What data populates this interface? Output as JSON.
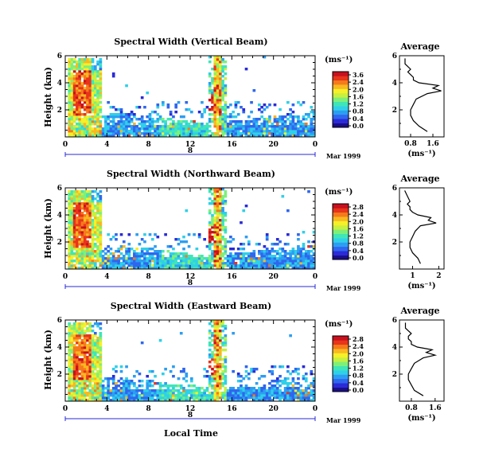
{
  "colorbar_colors": [
    "#1a0e8a",
    "#2a2ad8",
    "#2f66ee",
    "#2c9ef2",
    "#2fd0e8",
    "#3ee6b8",
    "#7ef07a",
    "#c8f040",
    "#f6f028",
    "#f9b820",
    "#f57a1c",
    "#e8341a",
    "#c8101e"
  ],
  "xaxis": {
    "ticks": [
      "0",
      "4",
      "8",
      "12",
      "16",
      "20",
      "0"
    ],
    "day_label": "8",
    "date_label": "Mar 1999",
    "label": "Local Time"
  },
  "yaxis_label": "Height (km)",
  "units_label": "(ms⁻¹)",
  "average_title": "Average",
  "charts": [
    {
      "title": "Spectral Width (Vertical Beam)",
      "colorbar_ticks": [
        "3.6",
        "2.4",
        "2.0",
        "1.6",
        "1.2",
        "0.8",
        "0.4",
        "0.0"
      ],
      "avg_xticks": [
        "0.8",
        "1.6"
      ],
      "avg_xrange": [
        0.4,
        2.0
      ]
    },
    {
      "title": "Spectral Width (Northward Beam)",
      "colorbar_ticks": [
        "2.8",
        "2.4",
        "2.0",
        "1.6",
        "1.2",
        "0.8",
        "0.4",
        "0.0"
      ],
      "avg_xticks": [
        "1",
        "2"
      ],
      "avg_xrange": [
        0.5,
        2.2
      ]
    },
    {
      "title": "Spectral Width (Eastward Beam)",
      "colorbar_ticks": [
        "2.8",
        "2.4",
        "2.0",
        "1.6",
        "1.2",
        "0.8",
        "0.4",
        "0.0"
      ],
      "avg_xticks": [
        "0.8",
        "1.6"
      ],
      "avg_xrange": [
        0.4,
        1.9
      ]
    }
  ],
  "chart_data": [
    {
      "type": "heatmap",
      "title": "Spectral Width (Vertical Beam)",
      "xlabel": "Local Time",
      "ylabel": "Height (km)",
      "x_range_hours": [
        0,
        24
      ],
      "y_range_km": [
        0,
        6
      ],
      "y_ticks": [
        2,
        4,
        6
      ],
      "colorbar_ticks": [
        0.0,
        0.4,
        0.8,
        1.2,
        1.6,
        2.0,
        2.4,
        3.6
      ],
      "average_profile": {
        "xlabel": "(ms⁻¹)",
        "height_km": [
          0.4,
          0.8,
          1.2,
          1.6,
          2.0,
          2.4,
          2.8,
          3.2,
          3.4,
          3.6,
          3.8,
          4.0,
          4.2,
          4.4,
          4.6,
          4.8,
          5.0,
          5.4,
          5.8
        ],
        "width": [
          1.4,
          1.1,
          0.9,
          0.8,
          0.8,
          0.9,
          1.0,
          1.4,
          1.9,
          1.6,
          1.8,
          1.1,
          0.9,
          0.9,
          0.8,
          0.7,
          0.8,
          0.6,
          0.6
        ]
      }
    },
    {
      "type": "heatmap",
      "title": "Spectral Width (Northward Beam)",
      "xlabel": "Local Time",
      "ylabel": "Height (km)",
      "x_range_hours": [
        0,
        24
      ],
      "y_range_km": [
        0,
        6
      ],
      "y_ticks": [
        2,
        4,
        6
      ],
      "colorbar_ticks": [
        0.0,
        0.4,
        0.8,
        1.2,
        1.6,
        2.0,
        2.4,
        2.8
      ],
      "average_profile": {
        "xlabel": "(ms⁻¹)",
        "height_km": [
          0.4,
          0.8,
          1.2,
          1.6,
          2.0,
          2.4,
          2.8,
          3.2,
          3.4,
          3.6,
          3.8,
          4.0,
          4.2,
          4.4,
          4.6,
          4.8,
          5.0,
          5.4,
          5.8
        ],
        "width": [
          1.3,
          1.2,
          1.0,
          0.9,
          0.9,
          1.0,
          1.1,
          1.3,
          1.9,
          1.6,
          1.7,
          1.2,
          1.0,
          0.9,
          0.9,
          0.8,
          0.9,
          0.8,
          0.7
        ]
      }
    },
    {
      "type": "heatmap",
      "title": "Spectral Width (Eastward Beam)",
      "xlabel": "Local Time",
      "ylabel": "Height (km)",
      "x_range_hours": [
        0,
        24
      ],
      "y_range_km": [
        0,
        6
      ],
      "y_ticks": [
        2,
        4,
        6
      ],
      "colorbar_ticks": [
        0.0,
        0.4,
        0.8,
        1.2,
        1.6,
        2.0,
        2.4,
        2.8
      ],
      "average_profile": {
        "xlabel": "(ms⁻¹)",
        "height_km": [
          0.4,
          0.8,
          1.2,
          1.6,
          2.0,
          2.4,
          2.8,
          3.2,
          3.4,
          3.6,
          3.8,
          4.0,
          4.2,
          4.4,
          4.6,
          4.8,
          5.0,
          5.4,
          5.8
        ],
        "width": [
          1.2,
          0.9,
          0.8,
          0.7,
          0.7,
          0.8,
          0.9,
          1.2,
          1.6,
          1.3,
          1.5,
          1.0,
          0.8,
          0.8,
          0.7,
          0.7,
          0.8,
          0.6,
          0.6
        ]
      }
    }
  ]
}
